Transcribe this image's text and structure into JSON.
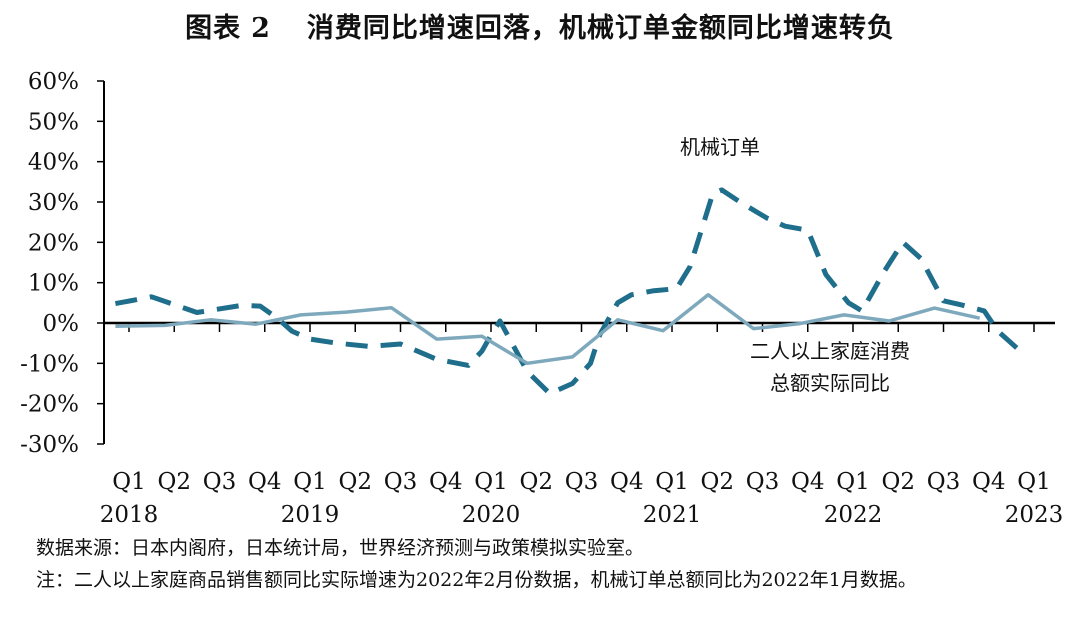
{
  "title": {
    "fig_label": "图表",
    "fig_number": "2",
    "text": "消费同比增速回落，机械订单金额同比增速转负"
  },
  "chart_data": {
    "type": "line",
    "x_ticks": [
      "Q1",
      "Q2",
      "Q3",
      "Q4",
      "Q1",
      "Q2",
      "Q3",
      "Q4",
      "Q1",
      "Q2",
      "Q3",
      "Q4",
      "Q1",
      "Q2",
      "Q3",
      "Q4",
      "Q1",
      "Q2",
      "Q3",
      "Q4",
      "Q1"
    ],
    "x_years": [
      {
        "label": "2018",
        "tick": 0
      },
      {
        "label": "2019",
        "tick": 4
      },
      {
        "label": "2020",
        "tick": 8
      },
      {
        "label": "2021",
        "tick": 12
      },
      {
        "label": "2022",
        "tick": 16
      },
      {
        "label": "2023",
        "tick": 20
      }
    ],
    "ylim": [
      -30,
      60
    ],
    "y_ticks": [
      60,
      50,
      40,
      30,
      20,
      10,
      0,
      -10,
      -20,
      -30
    ],
    "y_tick_labels": [
      "60%",
      "50%",
      "40%",
      "30%",
      "20%",
      "10%",
      "0%",
      "-10%",
      "-20%",
      "-30%"
    ],
    "series": [
      {
        "name": "机械订单",
        "style": "dashed",
        "color": "#1f6e8c",
        "x": [
          -0.3,
          0.5,
          1.5,
          2.5,
          2.9,
          3.3,
          3.6,
          4.0,
          4.6,
          5.3,
          6.0,
          6.8,
          7.5,
          7.8,
          8.0,
          8.2,
          8.8,
          9.3,
          9.8,
          10.2,
          10.4,
          10.6,
          10.8,
          11.1,
          11.6,
          12.1,
          12.4,
          12.9,
          13.1,
          13.5,
          14.1,
          14.5,
          15.0,
          15.4,
          15.9,
          16.2,
          16.7,
          17.1,
          17.5,
          18.0,
          18.4,
          18.9,
          19.2,
          19.8
        ],
        "y": [
          4.8,
          6.5,
          2.6,
          4.4,
          4.2,
          1.0,
          -2.0,
          -4.0,
          -5.0,
          -5.8,
          -5.2,
          -9.0,
          -10.5,
          -7.0,
          -3.0,
          0.5,
          -12.0,
          -17.5,
          -15.0,
          -10.0,
          -3.0,
          1.0,
          5.0,
          7.0,
          8.0,
          8.5,
          14.0,
          32.0,
          33.0,
          30.0,
          26.0,
          24.0,
          23.0,
          12.0,
          5.0,
          3.0,
          13.0,
          20.0,
          16.0,
          5.5,
          4.5,
          3.0,
          -2.0,
          -8.0
        ]
      },
      {
        "name": "二人以上家庭消费总额实际同比",
        "label_lines": [
          "二人以上家庭消费",
          "总额实际同比"
        ],
        "style": "solid",
        "color": "#7ea9bd",
        "x": [
          -0.3,
          0.8,
          1.8,
          2.8,
          3.8,
          4.8,
          5.8,
          6.8,
          7.8,
          8.8,
          9.8,
          10.8,
          11.8,
          12.8,
          13.8,
          14.8,
          15.8,
          16.8,
          17.8,
          18.8
        ],
        "y": [
          -0.8,
          -0.6,
          0.8,
          -0.3,
          2.0,
          2.7,
          3.8,
          -4.0,
          -3.3,
          -10.0,
          -8.4,
          0.8,
          -1.9,
          7.0,
          -1.4,
          -0.2,
          2.0,
          0.5,
          3.7,
          1.2
        ]
      }
    ]
  },
  "notes": {
    "source": "数据来源：日本内阁府，日本统计局，世界经济预测与政策模拟实验室。",
    "footnote": "注：二人以上家庭商品销售额同比实际增速为2022年2月份数据，机械订单总额同比为2022年1月数据。"
  }
}
